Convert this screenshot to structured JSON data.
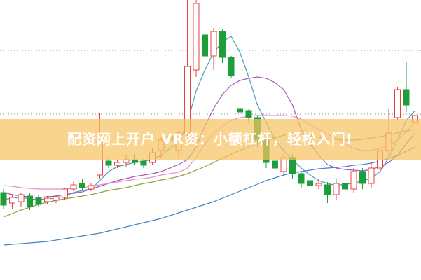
{
  "chart_data": {
    "type": "candlestick",
    "title": "配资网上开户 VR资：小额杠杆，轻松入门!",
    "ylim": [
      0,
      400
    ],
    "up_color": "#e8413d",
    "down_color": "#1e9e3a",
    "open": [
      125,
      110,
      112,
      120,
      117,
      112,
      114,
      118,
      130,
      138,
      130,
      150,
      170,
      164,
      168,
      172,
      170,
      168,
      185,
      200,
      185,
      210,
      300,
      350,
      320,
      355,
      318,
      245,
      242,
      232,
      200,
      170,
      155,
      175,
      152,
      142,
      135,
      136,
      122,
      138,
      130,
      155,
      138,
      160,
      185,
      232,
      272,
      225
    ],
    "close": [
      107,
      118,
      122,
      105,
      108,
      117,
      119,
      130,
      136,
      132,
      135,
      210,
      164,
      168,
      172,
      168,
      164,
      182,
      200,
      205,
      210,
      305,
      395,
      320,
      355,
      318,
      292,
      240,
      232,
      200,
      168,
      160,
      175,
      152,
      138,
      135,
      138,
      122,
      138,
      130,
      155,
      138,
      160,
      185,
      210,
      272,
      250,
      235
    ],
    "high": [
      130,
      121,
      125,
      124,
      121,
      120,
      122,
      132,
      142,
      145,
      138,
      238,
      175,
      172,
      178,
      180,
      175,
      188,
      205,
      210,
      215,
      400,
      400,
      360,
      360,
      358,
      320,
      260,
      245,
      235,
      205,
      175,
      180,
      180,
      155,
      150,
      145,
      140,
      145,
      142,
      160,
      160,
      168,
      195,
      245,
      275,
      312,
      265
    ],
    "low": [
      102,
      102,
      105,
      100,
      104,
      108,
      110,
      115,
      127,
      128,
      127,
      145,
      160,
      160,
      162,
      164,
      160,
      164,
      175,
      190,
      175,
      200,
      290,
      310,
      300,
      310,
      288,
      228,
      225,
      190,
      160,
      150,
      150,
      145,
      132,
      125,
      130,
      110,
      115,
      110,
      125,
      130,
      132,
      150,
      175,
      228,
      240,
      205
    ],
    "series": [
      {
        "color": "#4a9fb5",
        "values": [
          115,
          117,
          118,
          116,
          115,
          116,
          117,
          120,
          125,
          128,
          130,
          142,
          155,
          162,
          165,
          168,
          170,
          172,
          178,
          188,
          195,
          225,
          270,
          300,
          325,
          340,
          348,
          325,
          290,
          250,
          225,
          200,
          185,
          172,
          160,
          150,
          142,
          138,
          135,
          137,
          138,
          142,
          145,
          155,
          175,
          200,
          228,
          242
        ]
      },
      {
        "color": "#a35ab8",
        "values": [
          125,
          122,
          120,
          119,
          118,
          119,
          120,
          122,
          124,
          126,
          130,
          134,
          138,
          142,
          145,
          148,
          150,
          152,
          155,
          160,
          165,
          172,
          190,
          220,
          245,
          265,
          278,
          285,
          288,
          290,
          288,
          282,
          272,
          250,
          215,
          195,
          178,
          165,
          160,
          158,
          157,
          156,
          158,
          162,
          168,
          178,
          195,
          210
        ]
      },
      {
        "color": "#e88fc8",
        "values": [
          135,
          134,
          132,
          131,
          130,
          130,
          130,
          130,
          131,
          132,
          134,
          136,
          138,
          140,
          142,
          144,
          145,
          147,
          150,
          152,
          154,
          160,
          175,
          195,
          210,
          220,
          228,
          232,
          234,
          235,
          235,
          235,
          235,
          234,
          230,
          222,
          215,
          208,
          202,
          195,
          188,
          185,
          185,
          188,
          192,
          200,
          212,
          225
        ]
      },
      {
        "color": "#8aa43a",
        "values": [
          90,
          95,
          100,
          104,
          108,
          111,
          114,
          116,
          118,
          120,
          122,
          125,
          128,
          130,
          132,
          135,
          138,
          140,
          143,
          145,
          148,
          152,
          157,
          162,
          168,
          174,
          180,
          185,
          190,
          195,
          200,
          203,
          207,
          210,
          208,
          206,
          204,
          202,
          201,
          200,
          200,
          201,
          203,
          205,
          207,
          210,
          213,
          215
        ]
      },
      {
        "color": "#3f86c8",
        "values": [
          50,
          51,
          52,
          53,
          54,
          55,
          57,
          59,
          61,
          63,
          65,
          67,
          70,
          73,
          76,
          79,
          82,
          85,
          88,
          92,
          96,
          100,
          104,
          108,
          112,
          117,
          122,
          127,
          132,
          137,
          142,
          146,
          150,
          153,
          155,
          157,
          159,
          160,
          161,
          162,
          164,
          165,
          167,
          170,
          174,
          178,
          184,
          190
        ]
      }
    ]
  }
}
